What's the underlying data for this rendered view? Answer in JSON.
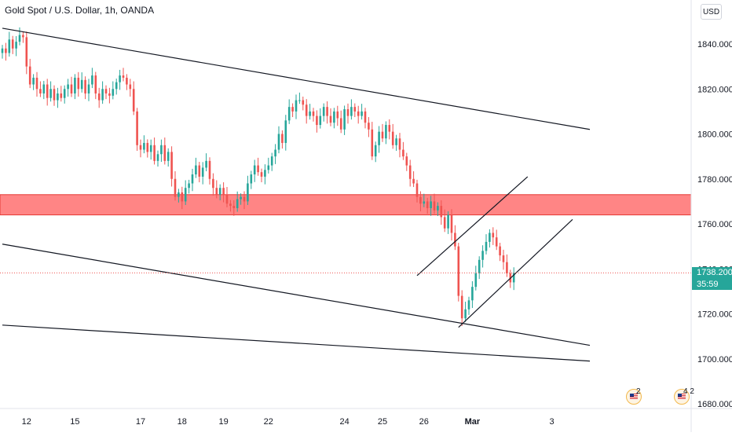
{
  "header": {
    "title": "Gold Spot / U.S. Dollar, 1h, OANDA",
    "currency": "USD"
  },
  "price_tag": {
    "price": "1738.200",
    "countdown": "35:59",
    "color": "#26a69a"
  },
  "events": [
    {
      "icon": "us-flag-icon",
      "count": "2"
    },
    {
      "icon": "us-flag-icon",
      "count": "4 2"
    }
  ],
  "colors": {
    "up": "#26a69a",
    "down": "#ef5350",
    "zone_fill": "#ff8585",
    "zone_border": "#e53935",
    "trendline": "#131722",
    "last_price_line": "#ef5350",
    "axis_text": "#131722"
  },
  "chart_data": {
    "type": "candlestick",
    "title": "Gold Spot / U.S. Dollar, 1h, OANDA",
    "ylim": [
      1676,
      1850
    ],
    "y_ticks": [
      1680,
      1700,
      1720,
      1740,
      1760,
      1780,
      1800,
      1820,
      1840
    ],
    "y_tick_labels": [
      "1680.000",
      "1700.000",
      "1720.000",
      "1740.000",
      "1760.000",
      "1780.000",
      "1800.000",
      "1820.000",
      "1840.000"
    ],
    "x_ticks": [
      {
        "label": "12",
        "i": 7
      },
      {
        "label": "15",
        "i": 21
      },
      {
        "label": "17",
        "i": 40
      },
      {
        "label": "18",
        "i": 52
      },
      {
        "label": "19",
        "i": 64
      },
      {
        "label": "22",
        "i": 77
      },
      {
        "label": "24",
        "i": 99
      },
      {
        "label": "25",
        "i": 110
      },
      {
        "label": "26",
        "i": 122
      },
      {
        "label": "Mar",
        "i": 136
      },
      {
        "label": "3",
        "i": 159
      }
    ],
    "x_tick_bold": [
      "Mar"
    ],
    "last_price": 1738.2,
    "resistance_zone": [
      1764,
      1773
    ],
    "trendlines": [
      {
        "i1": 0,
        "p1": 1847,
        "i2": 170,
        "p2": 1802
      },
      {
        "i1": 0,
        "p1": 1751,
        "i2": 170,
        "p2": 1706
      },
      {
        "i1": 0,
        "p1": 1715,
        "i2": 170,
        "p2": 1699
      },
      {
        "i1": 120,
        "p1": 1737,
        "i2": 152,
        "p2": 1781
      },
      {
        "i1": 132,
        "p1": 1714,
        "i2": 165,
        "p2": 1762
      }
    ],
    "closes": [
      1838,
      1836,
      1842,
      1838,
      1841,
      1844,
      1843,
      1830,
      1822,
      1825,
      1820,
      1818,
      1822,
      1816,
      1820,
      1815,
      1818,
      1816,
      1820,
      1822,
      1818,
      1825,
      1820,
      1824,
      1818,
      1822,
      1826,
      1818,
      1815,
      1820,
      1818,
      1817,
      1820,
      1823,
      1826,
      1825,
      1822,
      1820,
      1810,
      1795,
      1793,
      1796,
      1792,
      1795,
      1788,
      1791,
      1795,
      1788,
      1792,
      1780,
      1772,
      1774,
      1770,
      1776,
      1778,
      1782,
      1786,
      1781,
      1785,
      1788,
      1780,
      1776,
      1773,
      1776,
      1773,
      1769,
      1768,
      1767,
      1771,
      1772,
      1770,
      1778,
      1782,
      1786,
      1783,
      1781,
      1784,
      1786,
      1790,
      1793,
      1800,
      1796,
      1806,
      1812,
      1810,
      1815,
      1815,
      1813,
      1808,
      1810,
      1808,
      1804,
      1808,
      1812,
      1808,
      1805,
      1810,
      1807,
      1802,
      1811,
      1808,
      1812,
      1810,
      1808,
      1810,
      1805,
      1802,
      1790,
      1795,
      1801,
      1798,
      1804,
      1801,
      1795,
      1798,
      1793,
      1790,
      1786,
      1780,
      1778,
      1772,
      1769,
      1770,
      1767,
      1770,
      1766,
      1768,
      1763,
      1758,
      1764,
      1756,
      1750,
      1728,
      1718,
      1722,
      1726,
      1732,
      1738,
      1744,
      1748,
      1752,
      1756,
      1754,
      1750,
      1746,
      1743,
      1738,
      1734,
      1738.2
    ]
  }
}
